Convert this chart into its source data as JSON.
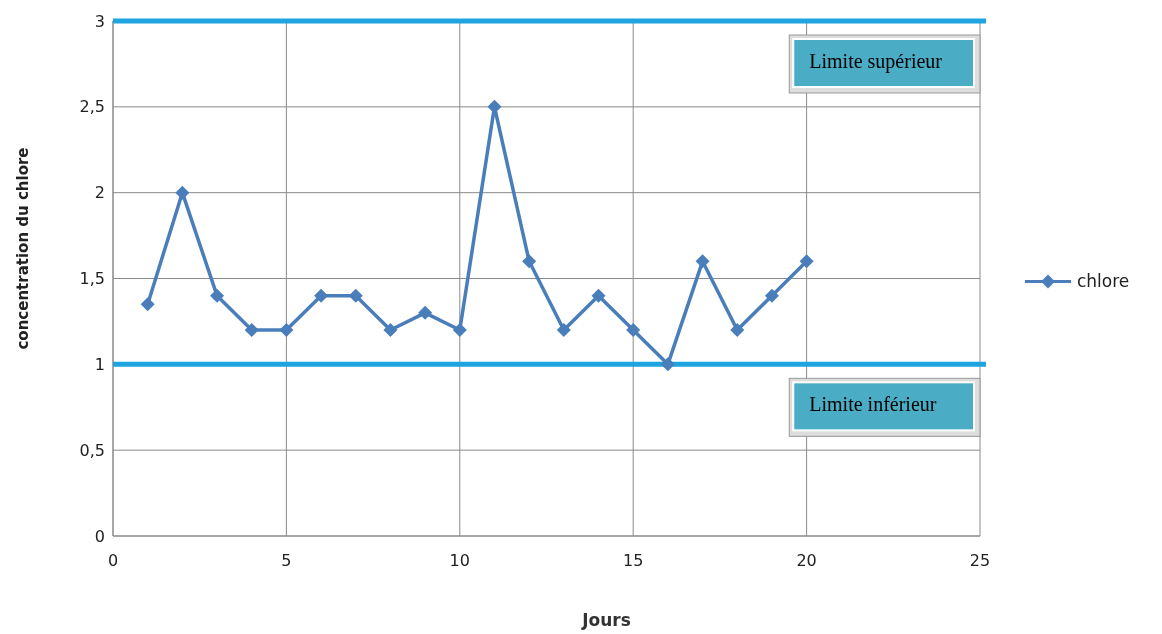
{
  "chart_data": {
    "type": "line",
    "xlabel": "Jours",
    "ylabel": "concentration du chlore",
    "x": [
      1,
      2,
      3,
      4,
      5,
      6,
      7,
      8,
      9,
      10,
      11,
      12,
      13,
      14,
      15,
      16,
      17,
      18,
      19,
      20
    ],
    "series": [
      {
        "name": "chlore",
        "color": "#4a7ebb",
        "values": [
          1.35,
          2.0,
          1.4,
          1.2,
          1.2,
          1.4,
          1.4,
          1.2,
          1.3,
          1.2,
          2.5,
          1.6,
          1.2,
          1.4,
          1.2,
          1.0,
          1.6,
          1.2,
          1.4,
          1.6
        ]
      }
    ],
    "xlim": [
      0,
      25
    ],
    "xticks": [
      0,
      5,
      10,
      15,
      20,
      25
    ],
    "ylim": [
      0,
      3
    ],
    "yticks": [
      0,
      {
        "value": 0.5,
        "label": "0,5"
      },
      1,
      {
        "value": 1.5,
        "label": "1,5"
      },
      2,
      {
        "value": 2.5,
        "label": "2,5"
      },
      3
    ],
    "ref_lines": [
      {
        "axis": "y",
        "value": 3,
        "label": "Limite supérieur",
        "color": "#1ea4e0"
      },
      {
        "axis": "y",
        "value": 1,
        "label": "Limite inférieur",
        "color": "#1ea4e0"
      }
    ],
    "grid": true,
    "legend": "right",
    "marker": "diamond",
    "line_style": "solid"
  }
}
